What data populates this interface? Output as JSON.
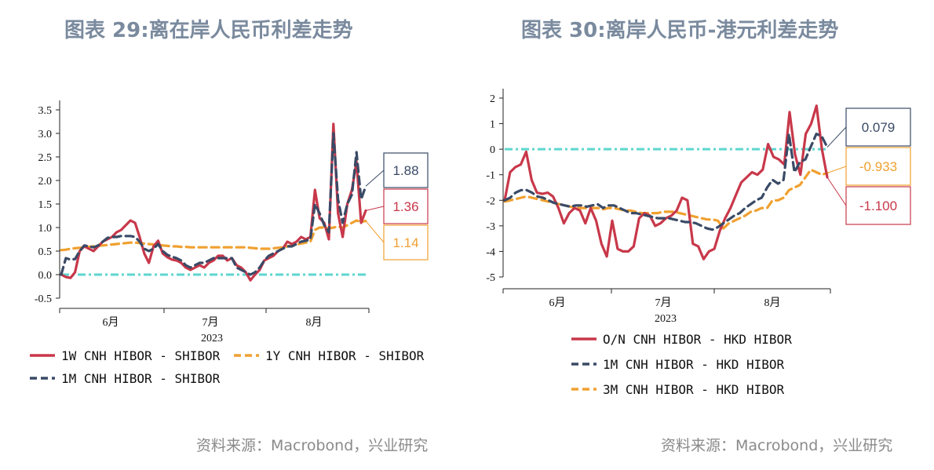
{
  "left": {
    "title": "图表 29:离在岸人民币利差走势",
    "source": "资料来源：Macrobond，兴业研究",
    "chart_data": {
      "type": "line",
      "ylim": [
        -0.5,
        3.5
      ],
      "yticks": [
        "3.5",
        "3.0",
        "2.5",
        "2.0",
        "1.5",
        "1.0",
        "0.5",
        "0.0",
        "-0.5"
      ],
      "ytick_values": [
        3.5,
        3.0,
        2.5,
        2.0,
        1.5,
        1.0,
        0.5,
        0.0,
        -0.5
      ],
      "xticks": [
        "6月",
        "7月",
        "8月"
      ],
      "xyear": "2023",
      "grid": false,
      "zero_line": true,
      "series": [
        {
          "name": "1W CNH HIBOR - SHIBOR",
          "color": "#c8384a",
          "dash": "solid",
          "last_label": "1.36",
          "values": [
            0.0,
            -0.05,
            -0.07,
            0.05,
            0.5,
            0.6,
            0.55,
            0.5,
            0.6,
            0.7,
            0.75,
            0.8,
            0.9,
            0.95,
            1.05,
            1.15,
            1.1,
            0.8,
            0.45,
            0.25,
            0.6,
            0.72,
            0.45,
            0.37,
            0.32,
            0.3,
            0.25,
            0.15,
            0.1,
            0.15,
            0.2,
            0.15,
            0.25,
            0.3,
            0.4,
            0.4,
            0.3,
            0.35,
            0.2,
            0.15,
            0.05,
            -0.12,
            0.0,
            0.1,
            0.3,
            0.35,
            0.4,
            0.5,
            0.55,
            0.7,
            0.65,
            0.7,
            0.8,
            0.75,
            0.8,
            1.8,
            1.2,
            1.1,
            0.75,
            3.2,
            1.3,
            0.8,
            1.5,
            1.8,
            2.4,
            1.1,
            1.36
          ]
        },
        {
          "name": "1Y CNH HIBOR - SHIBOR",
          "color": "#f0a030",
          "dash": "dash",
          "last_label": "1.14",
          "values": [
            0.52,
            0.53,
            0.55,
            0.56,
            0.57,
            0.58,
            0.59,
            0.6,
            0.61,
            0.62,
            0.63,
            0.64,
            0.65,
            0.66,
            0.67,
            0.68,
            0.68,
            0.67,
            0.66,
            0.65,
            0.64,
            0.63,
            0.62,
            0.61,
            0.6,
            0.6,
            0.59,
            0.59,
            0.58,
            0.58,
            0.58,
            0.58,
            0.58,
            0.58,
            0.58,
            0.58,
            0.58,
            0.58,
            0.58,
            0.58,
            0.58,
            0.57,
            0.56,
            0.55,
            0.55,
            0.55,
            0.56,
            0.57,
            0.58,
            0.6,
            0.62,
            0.64,
            0.66,
            0.68,
            0.7,
            0.95,
            1.0,
            1.0,
            0.98,
            1.0,
            1.02,
            1.0,
            1.05,
            1.1,
            1.15,
            1.12,
            1.14
          ]
        },
        {
          "name": "1M CNH HIBOR - SHIBOR",
          "color": "#3a4a66",
          "dash": "dash",
          "last_label": "1.88",
          "values": [
            0.0,
            0.35,
            0.32,
            0.33,
            0.5,
            0.62,
            0.6,
            0.58,
            0.62,
            0.7,
            0.78,
            0.8,
            0.8,
            0.82,
            0.82,
            0.82,
            0.8,
            0.7,
            0.55,
            0.5,
            0.55,
            0.65,
            0.5,
            0.42,
            0.38,
            0.35,
            0.3,
            0.2,
            0.15,
            0.2,
            0.25,
            0.25,
            0.3,
            0.35,
            0.35,
            0.35,
            0.35,
            0.35,
            0.15,
            0.1,
            0.05,
            0.0,
            0.05,
            0.15,
            0.3,
            0.4,
            0.45,
            0.5,
            0.55,
            0.6,
            0.6,
            0.65,
            0.7,
            0.72,
            0.75,
            1.5,
            1.3,
            1.05,
            0.9,
            3.0,
            1.6,
            1.1,
            1.5,
            1.7,
            2.6,
            1.6,
            1.88
          ]
        }
      ],
      "legend": [
        "1W CNH HIBOR - SHIBOR",
        "1Y CNH HIBOR - SHIBOR",
        "1M CNH HIBOR - SHIBOR"
      ],
      "callouts": [
        {
          "text": "1.88",
          "color": "#3a4a66",
          "series": "1M CNH HIBOR - SHIBOR"
        },
        {
          "text": "1.36",
          "color": "#c8384a",
          "series": "1W CNH HIBOR - SHIBOR"
        },
        {
          "text": "1.14",
          "color": "#f0a030",
          "series": "1Y CNH HIBOR - SHIBOR"
        }
      ]
    }
  },
  "right": {
    "title": "图表 30:离岸人民币-港元利差走势",
    "source": "资料来源：Macrobond，兴业研究",
    "chart_data": {
      "type": "line",
      "ylim": [
        -5,
        2
      ],
      "yticks": [
        "2",
        "1",
        "0",
        "-1",
        "-2",
        "-3",
        "-4",
        "-5"
      ],
      "ytick_values": [
        2,
        1,
        0,
        -1,
        -2,
        -3,
        -4,
        -5
      ],
      "xticks": [
        "6月",
        "7月",
        "8月"
      ],
      "xyear": "2023",
      "grid": false,
      "zero_line": true,
      "series": [
        {
          "name": "O/N CNH HIBOR - HKD HIBOR",
          "color": "#c8384a",
          "dash": "solid",
          "last_label": "-1.100",
          "values": [
            -2.0,
            -0.9,
            -0.7,
            -0.6,
            -0.1,
            -1.2,
            -1.7,
            -1.75,
            -1.7,
            -1.85,
            -2.3,
            -2.9,
            -2.5,
            -2.3,
            -2.4,
            -2.9,
            -2.3,
            -2.8,
            -3.7,
            -4.2,
            -2.8,
            -3.9,
            -4.0,
            -4.0,
            -3.8,
            -2.7,
            -2.5,
            -2.6,
            -3.0,
            -2.9,
            -2.7,
            -2.6,
            -2.4,
            -1.9,
            -2.0,
            -3.7,
            -3.8,
            -4.3,
            -4.0,
            -3.9,
            -3.2,
            -2.7,
            -2.3,
            -1.8,
            -1.3,
            -1.1,
            -0.9,
            -1.0,
            -0.8,
            0.2,
            -0.3,
            -0.4,
            -0.6,
            1.45,
            -0.2,
            -1.0,
            0.6,
            1.0,
            1.7,
            0.0,
            -1.1
          ]
        },
        {
          "name": "1M CNH HIBOR - HKD HIBOR",
          "color": "#3a4a66",
          "dash": "dash",
          "last_label": "0.079",
          "values": [
            -2.0,
            -1.9,
            -1.7,
            -1.6,
            -1.6,
            -1.7,
            -1.85,
            -1.9,
            -2.0,
            -2.1,
            -2.15,
            -2.2,
            -2.25,
            -2.2,
            -2.2,
            -2.25,
            -2.2,
            -2.15,
            -2.3,
            -2.2,
            -2.2,
            -2.3,
            -2.4,
            -2.5,
            -2.5,
            -2.55,
            -2.6,
            -2.65,
            -2.7,
            -2.7,
            -2.7,
            -2.75,
            -2.8,
            -2.85,
            -2.85,
            -2.9,
            -3.0,
            -3.1,
            -3.15,
            -3.05,
            -2.9,
            -2.75,
            -2.6,
            -2.5,
            -2.3,
            -2.15,
            -2.0,
            -1.9,
            -1.5,
            -1.2,
            -1.35,
            -1.2,
            0.6,
            -0.9,
            -0.5,
            -0.4,
            0.1,
            0.6,
            0.5,
            0.079
          ]
        },
        {
          "name": "3M CNH HIBOR - HKD HIBOR",
          "color": "#f0a030",
          "dash": "dash",
          "last_label": "-0.933",
          "values": [
            -2.05,
            -2.0,
            -1.95,
            -1.9,
            -1.85,
            -1.9,
            -1.95,
            -2.0,
            -2.05,
            -2.1,
            -2.15,
            -2.2,
            -2.25,
            -2.3,
            -2.3,
            -2.3,
            -2.3,
            -2.3,
            -2.35,
            -2.3,
            -2.3,
            -2.35,
            -2.4,
            -2.4,
            -2.45,
            -2.5,
            -2.5,
            -2.5,
            -2.5,
            -2.45,
            -2.45,
            -2.45,
            -2.5,
            -2.55,
            -2.6,
            -2.65,
            -2.7,
            -2.75,
            -2.75,
            -2.8,
            -3.1,
            -2.9,
            -2.8,
            -2.7,
            -2.6,
            -2.45,
            -2.4,
            -2.3,
            -2.3,
            -2.0,
            -2.0,
            -1.9,
            -1.6,
            -1.5,
            -1.4,
            -1.1,
            -0.8,
            -0.9,
            -1.0,
            -0.933
          ]
        }
      ],
      "legend": [
        "O/N CNH HIBOR - HKD HIBOR",
        "1M CNH HIBOR - HKD HIBOR",
        "3M CNH HIBOR - HKD HIBOR"
      ],
      "callouts": [
        {
          "text": "0.079",
          "color": "#3a4a66",
          "series": "1M CNH HIBOR - HKD HIBOR"
        },
        {
          "text": "-0.933",
          "color": "#f0a030",
          "series": "3M CNH HIBOR - HKD HIBOR"
        },
        {
          "text": "-1.100",
          "color": "#c8384a",
          "series": "O/N CNH HIBOR - HKD HIBOR"
        }
      ]
    }
  }
}
